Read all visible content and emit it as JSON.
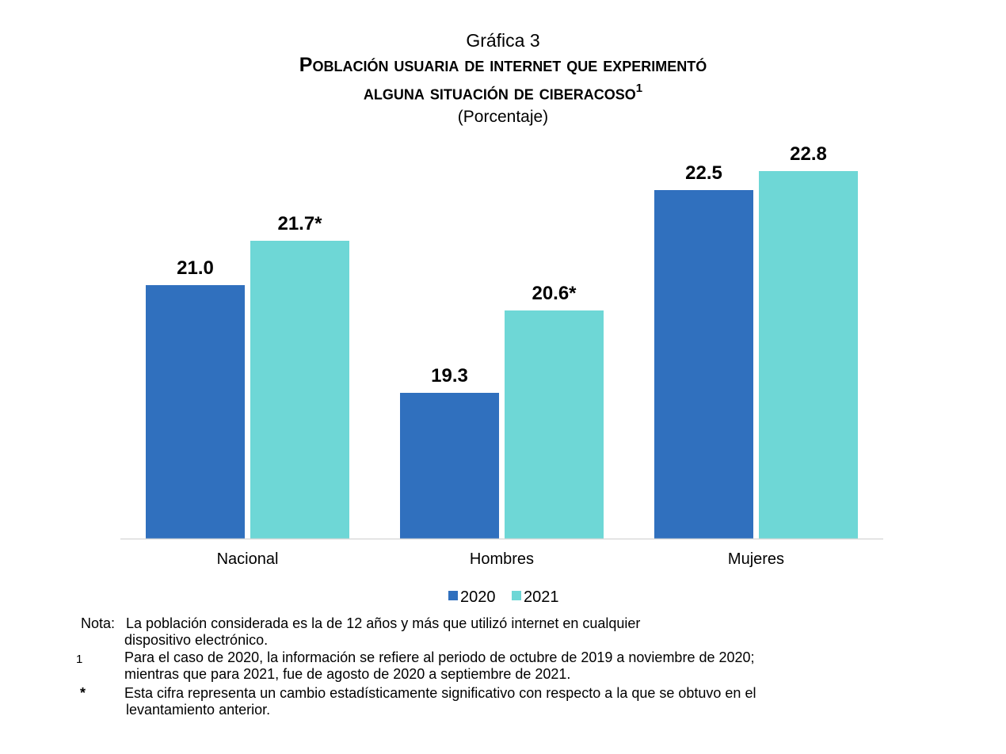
{
  "header": {
    "label": "Gráfica 3",
    "title_line1": "Población usuaria de internet que experimentó",
    "title_line2": "alguna situación de ciberacoso",
    "title_sup": "1",
    "subtitle": "(Porcentaje)"
  },
  "chart_data": {
    "type": "bar",
    "title": "Población usuaria de internet que experimentó alguna situación de ciberacoso",
    "subtitle": "(Porcentaje)",
    "categories": [
      "Nacional",
      "Hombres",
      "Mujeres"
    ],
    "series": [
      {
        "name": "2020",
        "color": "#3070BE",
        "values": [
          21.0,
          19.3,
          22.5
        ],
        "labels": [
          "21.0",
          "19.3",
          "22.5"
        ]
      },
      {
        "name": "2021",
        "color": "#6ED7D6",
        "values": [
          21.7,
          20.6,
          22.8
        ],
        "labels": [
          "21.7*",
          "20.6*",
          "22.8"
        ]
      }
    ],
    "ylim": [
      17,
      23.4
    ],
    "grid": false,
    "legend": "bottom-center",
    "xlabel": "",
    "ylabel": ""
  },
  "notes": {
    "nota_label": "Nota:",
    "nota_line1": "La población considerada es la de 12 años y más que utilizó internet en cualquier",
    "nota_line2": "dispositivo electrónico.",
    "fn1_mark": "1",
    "fn1_line1": "Para el caso de 2020, la información se refiere al periodo de octubre de 2019 a noviembre de 2020;",
    "fn1_line2": "mientras que para 2021, fue de agosto de 2020 a septiembre de 2021.",
    "fn2_mark": "*",
    "fn2_line1": "Esta cifra representa un cambio estadísticamente significativo con respecto a la que se obtuvo en el",
    "fn2_line2": "levantamiento anterior."
  }
}
